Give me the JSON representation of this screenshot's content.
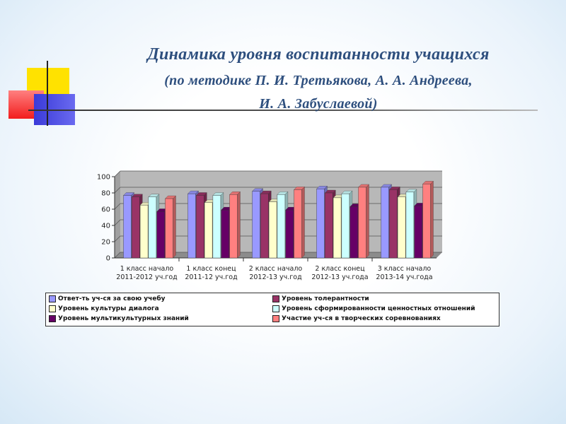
{
  "title": {
    "line1": "Динамика уровня воспитанности  учащихся",
    "line2": "(по методике П. И. Третьякова, А. А. Андреева,",
    "line3": "И. А. Забуслаевой)"
  },
  "chart_data": {
    "type": "bar",
    "title": "",
    "xlabel": "",
    "ylabel": "",
    "ylim": [
      0,
      100
    ],
    "yticks": [
      0,
      20,
      40,
      60,
      80,
      100
    ],
    "grid": true,
    "legend_position": "bottom",
    "categories": [
      [
        "1 класс начало",
        "2011-2012 уч.год"
      ],
      [
        "1 класс конец",
        "2011-12 уч.год"
      ],
      [
        "2 класс начало",
        "2012-13 уч.год"
      ],
      [
        "2 класс конец",
        "2012-13 уч.года"
      ],
      [
        "3 класс начало",
        "2013-14 уч.года"
      ]
    ],
    "series": [
      {
        "name": "Ответ-ть уч-ся за свою учебу",
        "color": "#9999ff",
        "values": [
          77,
          79,
          82,
          85,
          87
        ]
      },
      {
        "name": "Уровень толерантности",
        "color": "#993366",
        "values": [
          75,
          77,
          79,
          80,
          84
        ]
      },
      {
        "name": "Уровень культуры диалога",
        "color": "#ffffcc",
        "values": [
          65,
          68,
          69,
          74,
          75
        ]
      },
      {
        "name": "Уровень сформированности ценностных отношений",
        "color": "#ccffff",
        "values": [
          75,
          77,
          78,
          79,
          81
        ]
      },
      {
        "name": "Уровень мультикультурных знаний",
        "color": "#660066",
        "values": [
          57,
          59,
          59,
          63,
          64
        ]
      },
      {
        "name": "Участие уч-ся в творческих соревнованиях",
        "color": "#ff8080",
        "values": [
          73,
          78,
          84,
          87,
          91
        ]
      }
    ]
  }
}
